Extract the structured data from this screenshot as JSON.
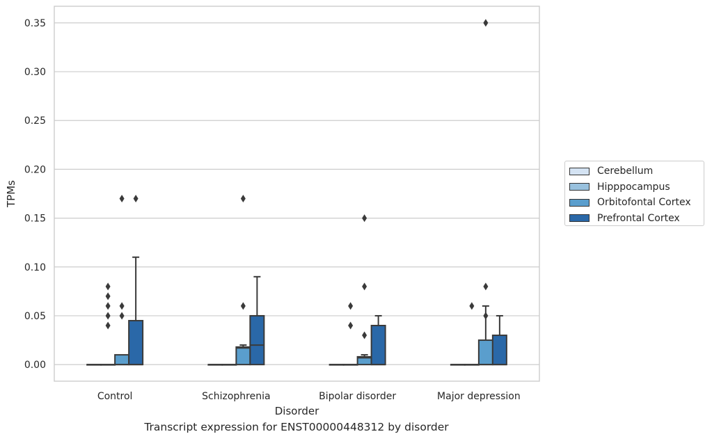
{
  "chart_data": {
    "type": "box",
    "title": "",
    "caption": "Transcript expression for ENST00000448312 by disorder",
    "xlabel": "Disorder",
    "ylabel": "TPMs",
    "ylim": [
      -0.017,
      0.367
    ],
    "yticks": [
      "0.00",
      "0.05",
      "0.10",
      "0.15",
      "0.20",
      "0.25",
      "0.30",
      "0.35"
    ],
    "ytick_values": [
      0,
      0.05,
      0.1,
      0.15,
      0.2,
      0.25,
      0.3,
      0.35
    ],
    "grid": true,
    "legend_position": "right",
    "categories": [
      "Control",
      "Schizophrenia",
      "Bipolar disorder",
      "Major depression"
    ],
    "series": [
      {
        "name": "Cerebellum",
        "color": "#d4e3f3",
        "boxes": [
          {
            "q1": 0,
            "median": 0,
            "q3": 0,
            "whisker_low": 0,
            "whisker_high": 0,
            "outliers": []
          },
          {
            "q1": 0,
            "median": 0,
            "q3": 0,
            "whisker_low": 0,
            "whisker_high": 0,
            "outliers": []
          },
          {
            "q1": 0,
            "median": 0,
            "q3": 0,
            "whisker_low": 0,
            "whisker_high": 0,
            "outliers": []
          },
          {
            "q1": 0,
            "median": 0,
            "q3": 0,
            "whisker_low": 0,
            "whisker_high": 0,
            "outliers": []
          }
        ]
      },
      {
        "name": "Hipppocampus",
        "color": "#98c1de",
        "boxes": [
          {
            "q1": 0,
            "median": 0,
            "q3": 0,
            "whisker_low": 0,
            "whisker_high": 0,
            "outliers": [
              0.04,
              0.05,
              0.06,
              0.07,
              0.08
            ]
          },
          {
            "q1": 0,
            "median": 0,
            "q3": 0,
            "whisker_low": 0,
            "whisker_high": 0,
            "outliers": []
          },
          {
            "q1": 0,
            "median": 0,
            "q3": 0,
            "whisker_low": 0,
            "whisker_high": 0,
            "outliers": [
              0.04,
              0.06
            ]
          },
          {
            "q1": 0,
            "median": 0,
            "q3": 0,
            "whisker_low": 0,
            "whisker_high": 0,
            "outliers": [
              0.06
            ]
          }
        ]
      },
      {
        "name": "Orbitofontal Cortex",
        "color": "#5a9ecd",
        "boxes": [
          {
            "q1": 0,
            "median": 0,
            "q3": 0.01,
            "whisker_low": 0,
            "whisker_high": 0.01,
            "outliers": [
              0.05,
              0.06,
              0.17
            ]
          },
          {
            "q1": 0,
            "median": 0.017,
            "q3": 0.018,
            "whisker_low": 0,
            "whisker_high": 0.02,
            "outliers": [
              0.06,
              0.17
            ]
          },
          {
            "q1": 0,
            "median": 0.007,
            "q3": 0.008,
            "whisker_low": 0,
            "whisker_high": 0.01,
            "outliers": [
              0.03,
              0.08,
              0.15
            ]
          },
          {
            "q1": 0,
            "median": 0,
            "q3": 0.025,
            "whisker_low": 0,
            "whisker_high": 0.06,
            "outliers": [
              0.05,
              0.08,
              0.35
            ]
          }
        ]
      },
      {
        "name": "Prefrontal Cortex",
        "color": "#2a68a8",
        "boxes": [
          {
            "q1": 0,
            "median": 0,
            "q3": 0.045,
            "whisker_low": 0,
            "whisker_high": 0.11,
            "outliers": [
              0.17
            ]
          },
          {
            "q1": 0,
            "median": 0.02,
            "q3": 0.05,
            "whisker_low": 0,
            "whisker_high": 0.09,
            "outliers": []
          },
          {
            "q1": 0,
            "median": 0,
            "q3": 0.04,
            "whisker_low": 0,
            "whisker_high": 0.05,
            "outliers": []
          },
          {
            "q1": 0,
            "median": 0,
            "q3": 0.03,
            "whisker_low": 0,
            "whisker_high": 0.05,
            "outliers": []
          }
        ]
      }
    ]
  }
}
